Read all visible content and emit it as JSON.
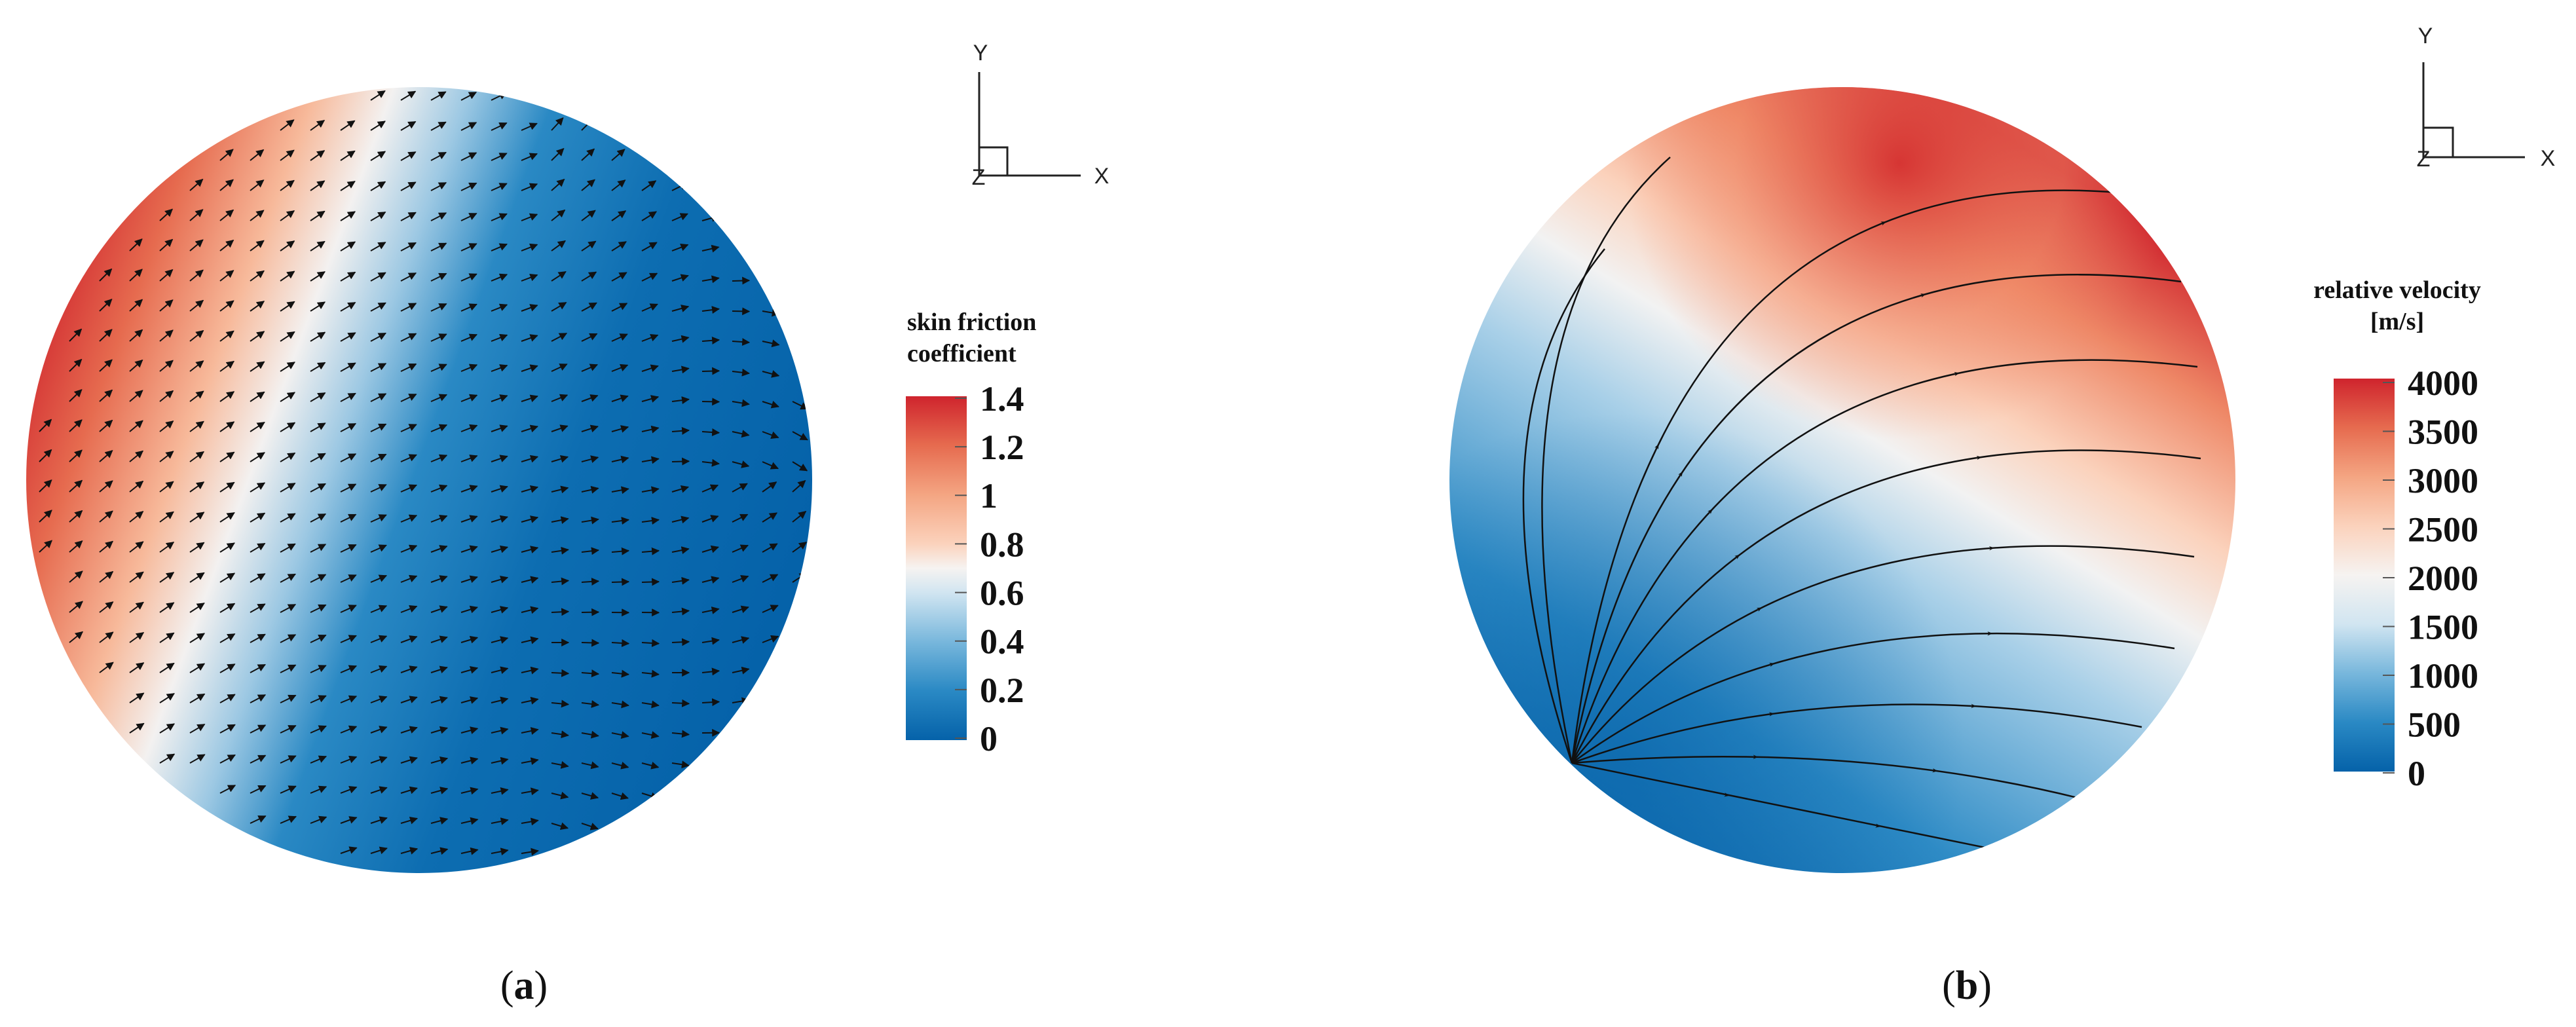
{
  "panels": [
    {
      "id": "a",
      "caption_open": "(",
      "caption_letter": "a",
      "caption_close": ")",
      "axis": {
        "y": "Y",
        "x": "X",
        "z": "Z"
      },
      "legend": {
        "title_line1": "skin friction",
        "title_line2": "coefficient",
        "ticks": [
          "1.4",
          "1.2",
          "1",
          "0.8",
          "0.6",
          "0.4",
          "0.2",
          "0"
        ]
      }
    },
    {
      "id": "b",
      "caption_open": "(",
      "caption_letter": "b",
      "caption_close": ")",
      "axis": {
        "y": "Y",
        "x": "X",
        "z": "Z"
      },
      "legend": {
        "title_line1": "relative velocity",
        "title_line2": "[m/s]",
        "ticks": [
          "4000",
          "3500",
          "3000",
          "2500",
          "2000",
          "1500",
          "1000",
          "500",
          "0"
        ]
      }
    }
  ],
  "colors": {
    "colormap": [
      "#0562a9",
      "#2a89c4",
      "#78b7dc",
      "#d1e5f1",
      "#f6f3f1",
      "#fbd2bc",
      "#f4a582",
      "#e66b4f",
      "#cf242d"
    ],
    "arrow": "#111111",
    "streamline": "#111111"
  }
}
